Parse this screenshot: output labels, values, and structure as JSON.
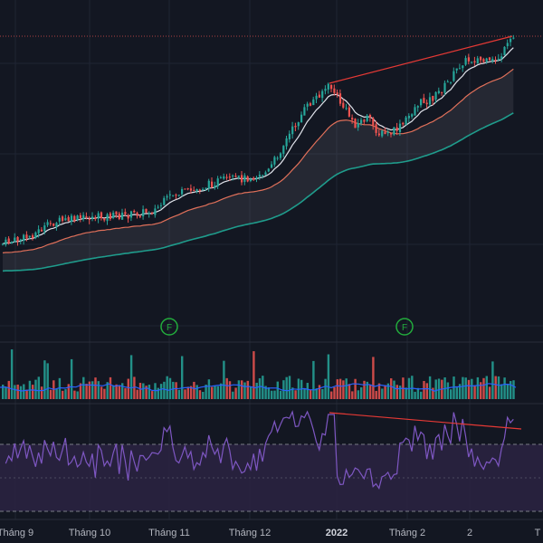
{
  "colors": {
    "background": "#131722",
    "grid": "#1f2433",
    "up": "#26a69a",
    "down": "#ef5350",
    "ema_fast": "#e0e3eb",
    "ema_mid": "#e0705a",
    "ema_slow": "#1f9c8c",
    "volume_ma": "#2962ff",
    "rsi_line": "#7e57c2",
    "rsi_band": "#2a2240",
    "divergence": "#e53935",
    "price_line": "#ef5350",
    "f_marker": "#22ab3c"
  },
  "x_axis": {
    "labels": [
      "Tháng 9",
      "Tháng 10",
      "Tháng 11",
      "Tháng 12",
      "2022",
      "Tháng 2",
      "2",
      "T"
    ],
    "bold_labels": [
      "2022"
    ]
  },
  "markers": [
    {
      "type": "dividend",
      "label": "F"
    },
    {
      "type": "dividend",
      "label": "F"
    }
  ],
  "chart_data": {
    "type": "candlestick",
    "title": "",
    "panes": [
      "price",
      "volume",
      "rsi"
    ],
    "price": {
      "trend": "uptrend with correction in January, new highs in March",
      "ema_lines": [
        "fast",
        "mid",
        "slow"
      ],
      "fill_between_mid_and_slow": true,
      "divergence_line": {
        "from_month": "2022",
        "to_month": "end",
        "direction": "rising"
      }
    },
    "volume": {
      "has_moving_average": true
    },
    "rsi": {
      "upper_band": 70,
      "lower_band": 30,
      "mid_line": 50,
      "divergence_line": {
        "direction": "falling"
      }
    },
    "grid": true
  }
}
